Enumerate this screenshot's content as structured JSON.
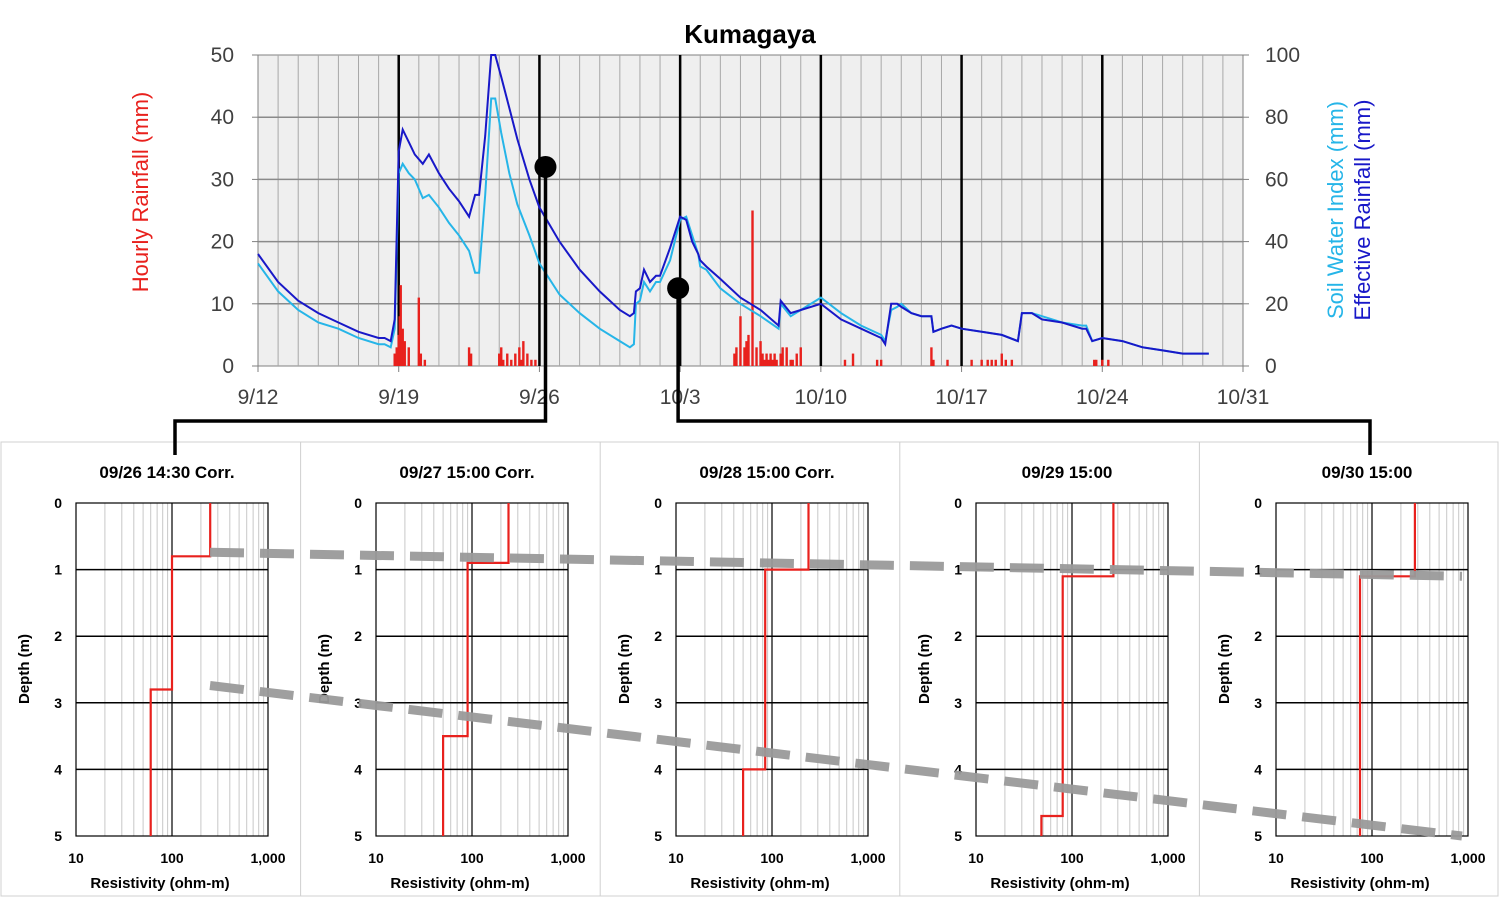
{
  "chart_data": [
    {
      "type": "line",
      "title": "Kumagaya",
      "ylabel_left": "Hourly Rainfall (mm)",
      "ylabel_right_1": "Soil Water Index (mm)",
      "ylabel_right_2": "Effective Rainfall (mm)",
      "xlabel": "",
      "x_ticks": [
        "9/12",
        "9/19",
        "9/26",
        "10/3",
        "10/10",
        "10/17",
        "10/24",
        "10/31"
      ],
      "x_range_days": [
        0,
        49
      ],
      "ylim_left": [
        0,
        50
      ],
      "yticks_left": [
        "0",
        "10",
        "20",
        "30",
        "40",
        "50"
      ],
      "ylim_right": [
        0,
        100
      ],
      "yticks_right": [
        "0",
        "20",
        "40",
        "60",
        "80",
        "100"
      ],
      "grid": true,
      "colors": {
        "rain": "#e8211d",
        "swi": "#26b5e8",
        "eff": "#1818c8"
      },
      "series": [
        {
          "name": "Effective Rainfall (mm)",
          "axis": "right",
          "x": [
            0,
            1,
            2,
            3,
            4,
            5,
            6,
            6.3,
            6.6,
            6.8,
            7.0,
            7.2,
            7.5,
            7.8,
            8.2,
            8.5,
            9.0,
            9.5,
            10.0,
            10.5,
            10.8,
            11.0,
            11.3,
            11.6,
            11.8,
            12.1,
            12.5,
            12.9,
            13.5,
            14.0,
            15.0,
            16.0,
            17.0,
            18.0,
            18.5,
            18.7,
            18.8,
            19.0,
            19.2,
            19.5,
            19.8,
            20.0,
            20.5,
            21.0,
            21.3,
            21.6,
            21.9,
            22.0,
            22.3,
            23.0,
            24.0,
            25.0,
            25.9,
            26.0,
            26.5,
            27.0,
            28.0,
            29.0,
            30.0,
            31.0,
            31.2,
            31.5,
            31.8,
            32.0,
            32.5,
            33.0,
            33.5,
            33.6,
            34.0,
            34.5,
            35.0,
            36.0,
            37.0,
            37.8,
            38.0,
            38.5,
            39.0,
            40.0,
            41.0,
            41.2,
            41.5,
            42.0,
            43.0,
            44.0,
            45.0,
            46.0,
            47.0,
            47.3
          ],
          "values": [
            36,
            27,
            21,
            17,
            14,
            11,
            9,
            9,
            8,
            15,
            69,
            76,
            72,
            68,
            65,
            68,
            62,
            57,
            53,
            48,
            55,
            55,
            74,
            100,
            100,
            93,
            83,
            73,
            60,
            51,
            40,
            31,
            24,
            18,
            16,
            17,
            24,
            25,
            31,
            27,
            29,
            29,
            38,
            48,
            47,
            40,
            36,
            34,
            32,
            28,
            22,
            18,
            13,
            21,
            17,
            18,
            20,
            15,
            12,
            9,
            7,
            20,
            20,
            19,
            17,
            16,
            16,
            11,
            12,
            13,
            12,
            11,
            10,
            8,
            17,
            17,
            15,
            14,
            12,
            12,
            8,
            9,
            8,
            6,
            5,
            4,
            4,
            4
          ]
        },
        {
          "name": "Soil Water Index (mm)",
          "axis": "right",
          "x": [
            0,
            1,
            2,
            3,
            4,
            5,
            6,
            6.3,
            6.6,
            6.8,
            7.0,
            7.2,
            7.5,
            7.8,
            8.2,
            8.5,
            9.0,
            9.5,
            10.0,
            10.5,
            10.8,
            11.0,
            11.3,
            11.6,
            11.8,
            12.1,
            12.5,
            12.9,
            13.5,
            14.0,
            15.0,
            16.0,
            17.0,
            18.0,
            18.5,
            18.7,
            18.8,
            19.0,
            19.2,
            19.5,
            19.8,
            20.0,
            20.5,
            21.0,
            21.3,
            21.6,
            21.9,
            22.0,
            22.3,
            23.0,
            24.0,
            25.0,
            25.9,
            26.0,
            26.5,
            27.0,
            28.0,
            29.0,
            30.0,
            31.0,
            31.2,
            31.5,
            31.8,
            32.0,
            32.5,
            33.0,
            33.5,
            33.6,
            34.0,
            34.5,
            35.0,
            36.0,
            37.0,
            37.8,
            38.0,
            38.5,
            39.0,
            40.0,
            41.0,
            41.2,
            41.5,
            42.0,
            43.0,
            44.0,
            45.0,
            46.0,
            47.0,
            47.3
          ],
          "values": [
            33,
            24,
            18,
            14,
            12,
            9,
            7,
            7,
            6,
            12,
            62,
            65,
            62,
            60,
            54,
            55,
            51,
            46,
            42,
            37,
            30,
            30,
            55,
            86,
            86,
            75,
            62,
            52,
            42,
            33,
            23,
            17,
            12,
            8,
            6,
            7,
            20,
            21,
            27,
            24,
            27,
            27,
            34,
            47,
            48,
            42,
            36,
            32,
            31,
            25,
            20,
            16,
            12,
            20,
            16,
            18,
            22,
            17,
            13,
            10,
            8,
            18,
            19,
            20,
            17,
            16,
            16,
            11,
            12,
            13,
            12,
            11,
            10,
            8,
            17,
            17,
            16,
            14,
            13,
            13,
            8,
            9,
            8,
            6,
            5,
            4,
            4,
            4
          ]
        },
        {
          "name": "Hourly Rainfall (mm)",
          "axis": "left",
          "type": "bar",
          "x": [
            6.8,
            6.9,
            7.0,
            7.05,
            7.1,
            7.2,
            7.3,
            7.5,
            8.0,
            8.1,
            8.3,
            10.5,
            10.6,
            12.0,
            12.1,
            12.2,
            12.4,
            12.6,
            12.8,
            13.0,
            13.1,
            13.2,
            13.4,
            13.6,
            13.8,
            23.7,
            23.8,
            24.0,
            24.2,
            24.3,
            24.4,
            24.6,
            24.8,
            25.0,
            25.1,
            25.2,
            25.3,
            25.4,
            25.5,
            25.6,
            25.7,
            25.8,
            26.0,
            26.1,
            26.3,
            26.5,
            26.6,
            26.8,
            27.0,
            29.2,
            29.6,
            30.8,
            31.0,
            33.5,
            33.6,
            34.3,
            35.5,
            36.0,
            36.3,
            36.5,
            36.7,
            37.0,
            37.2,
            37.5,
            41.6,
            41.7,
            42.0,
            42.3
          ],
          "values": [
            2,
            3,
            5,
            8,
            13,
            6,
            4,
            3,
            11,
            2,
            1,
            3,
            2,
            2,
            3,
            1,
            2,
            1,
            2,
            3,
            1,
            4,
            2,
            1,
            1,
            2,
            3,
            8,
            3,
            4,
            5,
            25,
            3,
            4,
            2,
            1,
            2,
            1,
            2,
            1,
            2,
            1,
            2,
            3,
            3,
            1,
            1,
            2,
            3,
            1,
            2,
            1,
            1,
            3,
            1,
            1,
            1,
            1,
            1,
            1,
            1,
            2,
            1,
            1,
            1,
            1,
            1,
            1
          ]
        }
      ]
    },
    {
      "type": "line",
      "title": "09/26 14:30  Corr.",
      "xlabel": "Resistivity (ohm-m)",
      "ylabel": "Depth (m)",
      "x_scale": "log",
      "xlim": [
        10,
        1000
      ],
      "x_ticks": [
        "10",
        "100",
        "1,000"
      ],
      "ylim": [
        5,
        0
      ],
      "y_ticks": [
        "0",
        "1",
        "2",
        "3",
        "4",
        "5"
      ],
      "profile": {
        "resistivity": [
          250,
          250,
          100,
          100,
          60,
          60
        ],
        "depth": [
          0,
          0.8,
          0.8,
          2.8,
          2.8,
          5
        ]
      }
    },
    {
      "type": "line",
      "title": "09/27 15:00  Corr.",
      "xlabel": "Resistivity (ohm-m)",
      "ylabel": "Depth (m)",
      "x_scale": "log",
      "xlim": [
        10,
        1000
      ],
      "x_ticks": [
        "10",
        "100",
        "1,000"
      ],
      "ylim": [
        5,
        0
      ],
      "y_ticks": [
        "0",
        "1",
        "2",
        "3",
        "4",
        "5"
      ],
      "profile": {
        "resistivity": [
          240,
          240,
          90,
          90,
          50,
          50
        ],
        "depth": [
          0,
          0.9,
          0.9,
          3.5,
          3.5,
          5
        ]
      }
    },
    {
      "type": "line",
      "title": "09/28 15:00  Corr.",
      "xlabel": "Resistivity (ohm-m)",
      "ylabel": "Depth (m)",
      "x_scale": "log",
      "xlim": [
        10,
        1000
      ],
      "x_ticks": [
        "10",
        "100",
        "1,000"
      ],
      "ylim": [
        5,
        0
      ],
      "y_ticks": [
        "0",
        "1",
        "2",
        "3",
        "4",
        "5"
      ],
      "profile": {
        "resistivity": [
          240,
          240,
          85,
          85,
          50,
          50
        ],
        "depth": [
          0,
          1.0,
          1.0,
          4.0,
          4.0,
          5
        ]
      }
    },
    {
      "type": "line",
      "title": "09/29 15:00",
      "xlabel": "Resistivity (ohm-m)",
      "ylabel": "Depth (m)",
      "x_scale": "log",
      "xlim": [
        10,
        1000
      ],
      "x_ticks": [
        "10",
        "100",
        "1,000"
      ],
      "ylim": [
        5,
        0
      ],
      "y_ticks": [
        "0",
        "1",
        "2",
        "3",
        "4",
        "5"
      ],
      "profile": {
        "resistivity": [
          270,
          270,
          80,
          80,
          48,
          48
        ],
        "depth": [
          0,
          1.1,
          1.1,
          4.7,
          4.7,
          5
        ]
      }
    },
    {
      "type": "line",
      "title": "09/30 15:00",
      "xlabel": "Resistivity (ohm-m)",
      "ylabel": "Depth (m)",
      "x_scale": "log",
      "xlim": [
        10,
        1000
      ],
      "x_ticks": [
        "10",
        "100",
        "1,000"
      ],
      "ylim": [
        5,
        0
      ],
      "y_ticks": [
        "0",
        "1",
        "2",
        "3",
        "4",
        "5"
      ],
      "profile": {
        "resistivity": [
          280,
          280,
          75,
          75
        ],
        "depth": [
          0,
          1.1,
          1.1,
          5
        ]
      }
    }
  ],
  "markers": [
    {
      "day": 14.3,
      "value": 32,
      "panel_from": 0,
      "panel_to": 0
    },
    {
      "day": 20.9,
      "value": 12.5,
      "panel_from": 1,
      "panel_to": 4
    }
  ],
  "trend_lines": [
    {
      "panel_from": 0,
      "depth_from": 0.8,
      "panel_to": 4,
      "depth_to": 1.1
    },
    {
      "panel_from": 0,
      "depth_from": 2.8,
      "panel_to": 4,
      "depth_to": 5.0
    }
  ]
}
